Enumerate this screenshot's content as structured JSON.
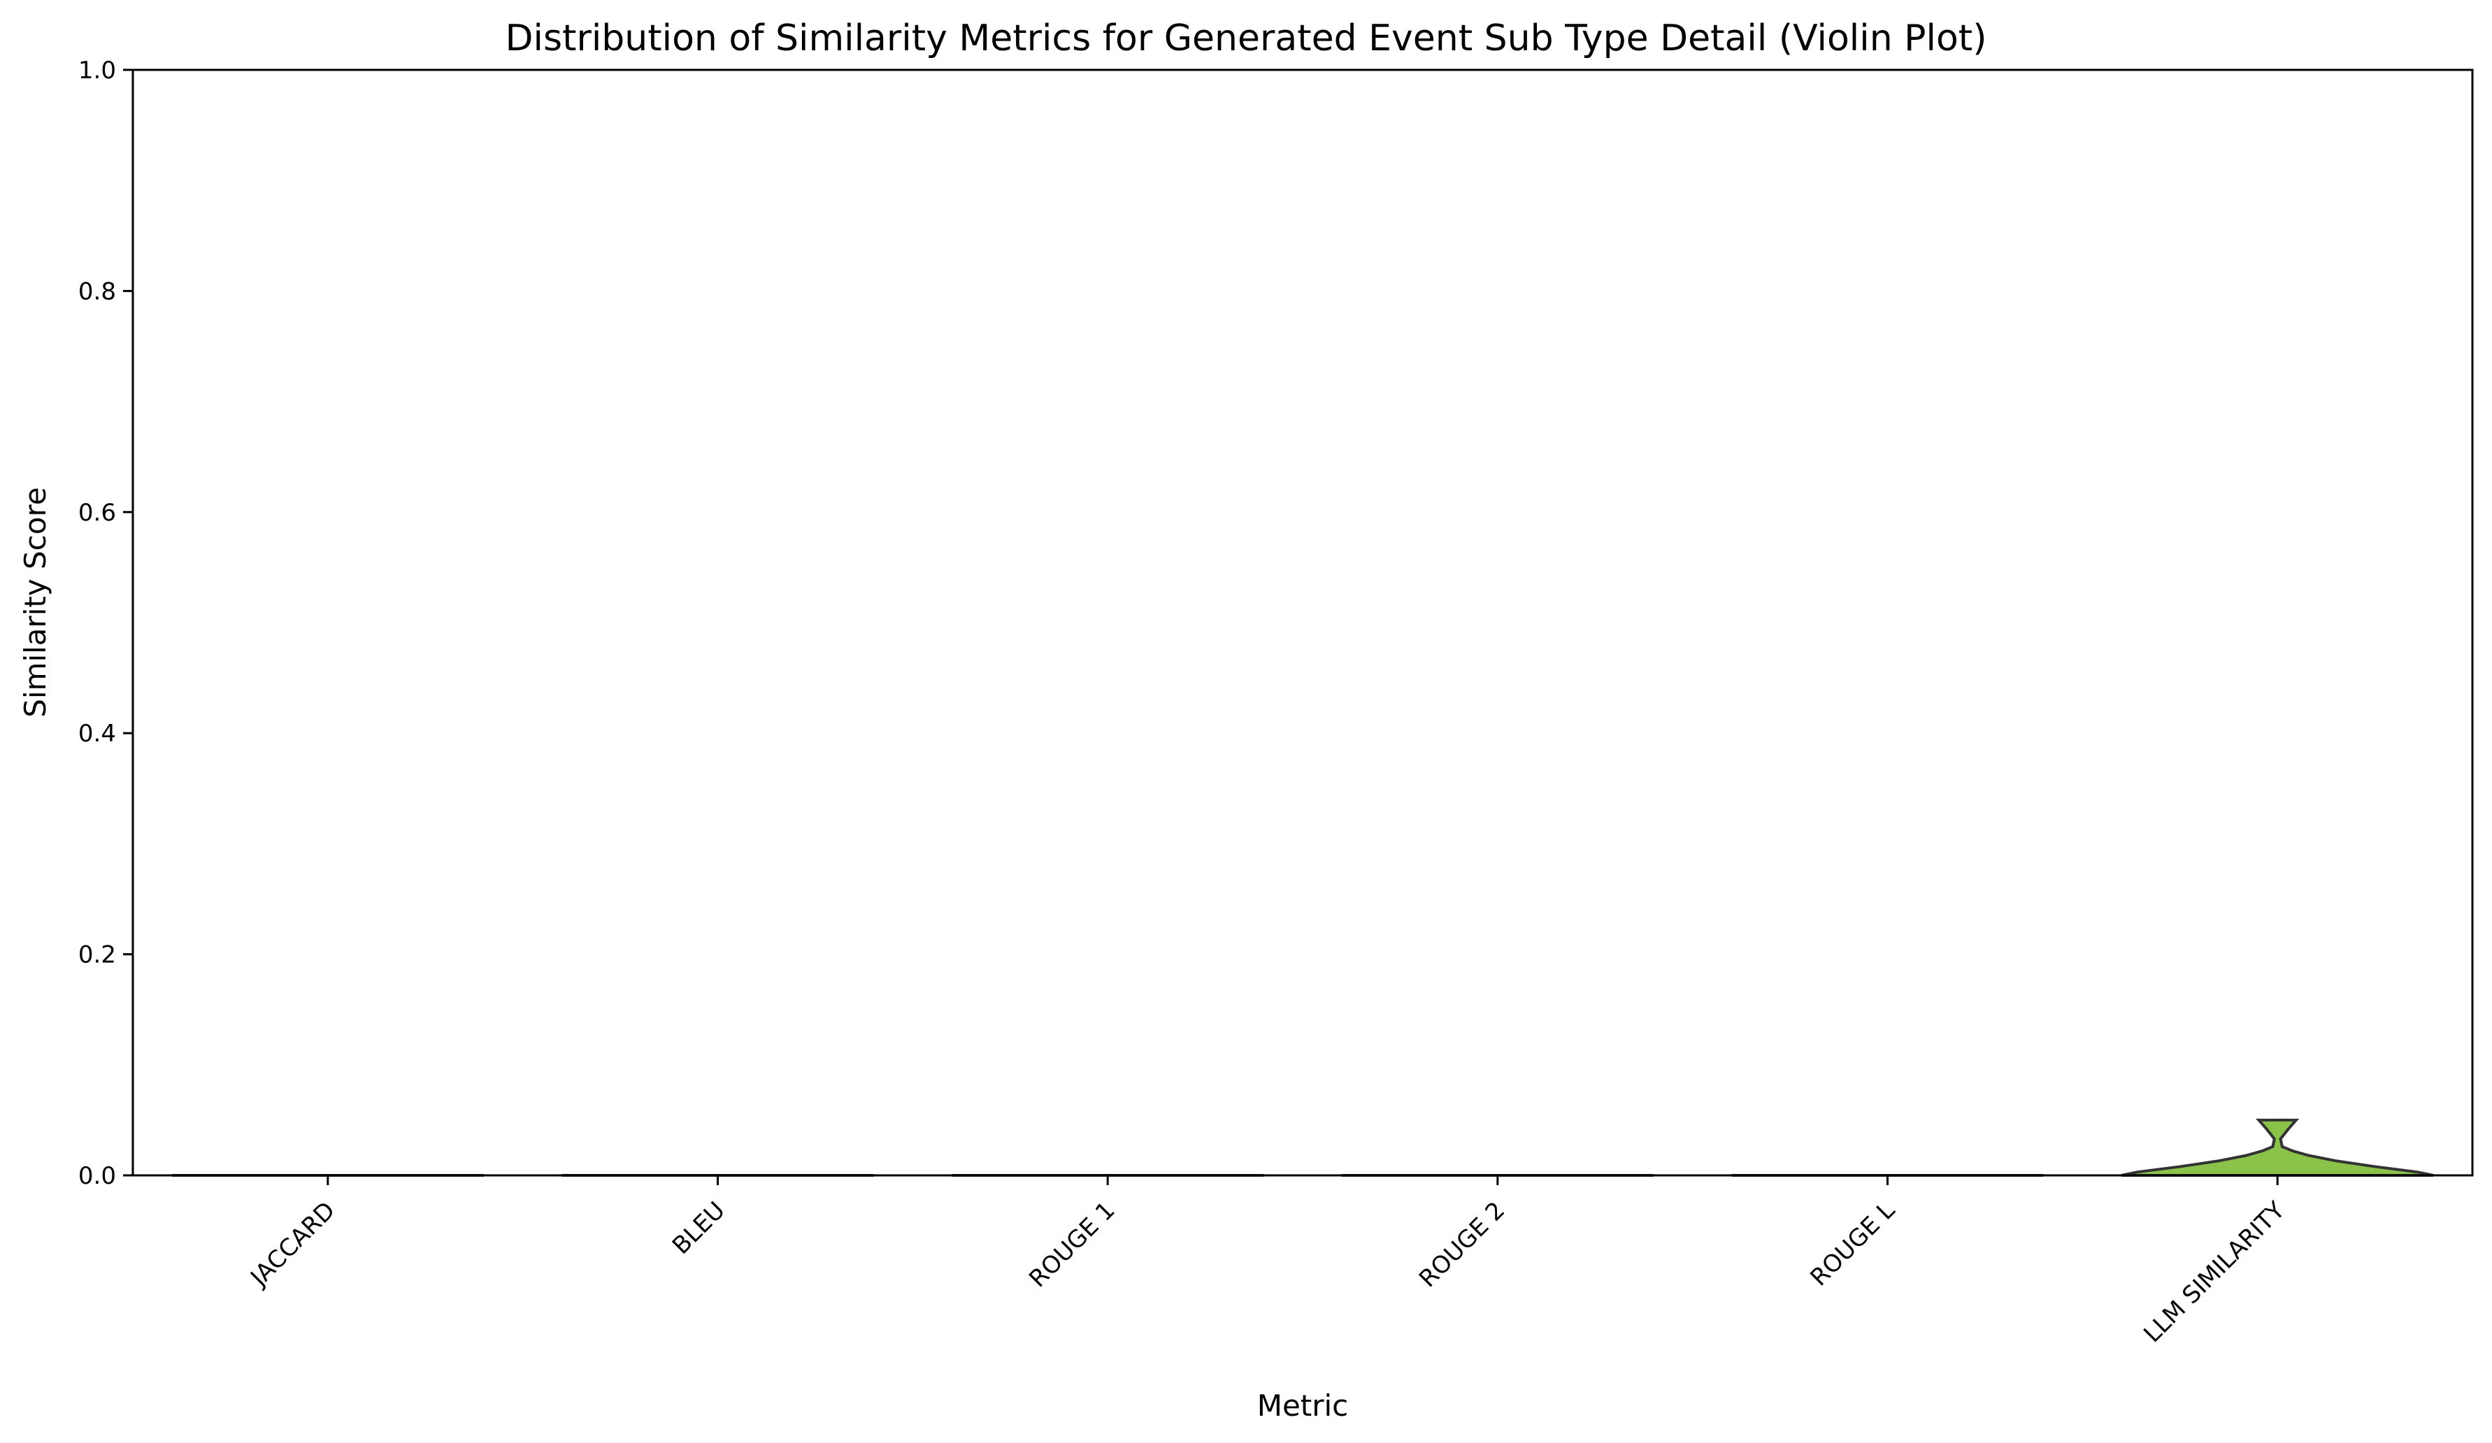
{
  "chart_data": {
    "type": "violin",
    "title": "Distribution of Similarity Metrics for Generated Event Sub Type Detail (Violin Plot)",
    "xlabel": "Metric",
    "ylabel": "Similarity Score",
    "ylim": [
      0,
      1.0
    ],
    "yticks": [
      "0.0",
      "0.2",
      "0.4",
      "0.6",
      "0.8",
      "1.0"
    ],
    "categories": [
      "JACCARD",
      "BLEU",
      "ROUGE 1",
      "ROUGE 2",
      "ROUGE L",
      "LLM SIMILARITY"
    ],
    "series": [
      {
        "category": "JACCARD",
        "min": 0.0,
        "max": 0.0,
        "color": "#d9d9d9"
      },
      {
        "category": "BLEU",
        "min": 0.0,
        "max": 0.0,
        "color": "#d9d9d9"
      },
      {
        "category": "ROUGE 1",
        "min": 0.0,
        "max": 0.0,
        "color": "#d9d9d9"
      },
      {
        "category": "ROUGE 2",
        "min": 0.0,
        "max": 0.0,
        "color": "#d9d9d9"
      },
      {
        "category": "ROUGE L",
        "min": 0.0,
        "max": 0.0,
        "color": "#d9d9d9"
      },
      {
        "category": "LLM SIMILARITY",
        "min": 0.0,
        "max": 0.05,
        "color": "#8bc34a",
        "profile": [
          [
            0.0,
            1.0
          ],
          [
            0.003,
            0.9
          ],
          [
            0.008,
            0.62
          ],
          [
            0.013,
            0.38
          ],
          [
            0.018,
            0.2
          ],
          [
            0.022,
            0.1
          ],
          [
            0.026,
            0.03
          ],
          [
            0.033,
            0.02
          ],
          [
            0.042,
            0.07
          ],
          [
            0.05,
            0.12
          ]
        ]
      }
    ],
    "legend": "none",
    "grid": false
  }
}
